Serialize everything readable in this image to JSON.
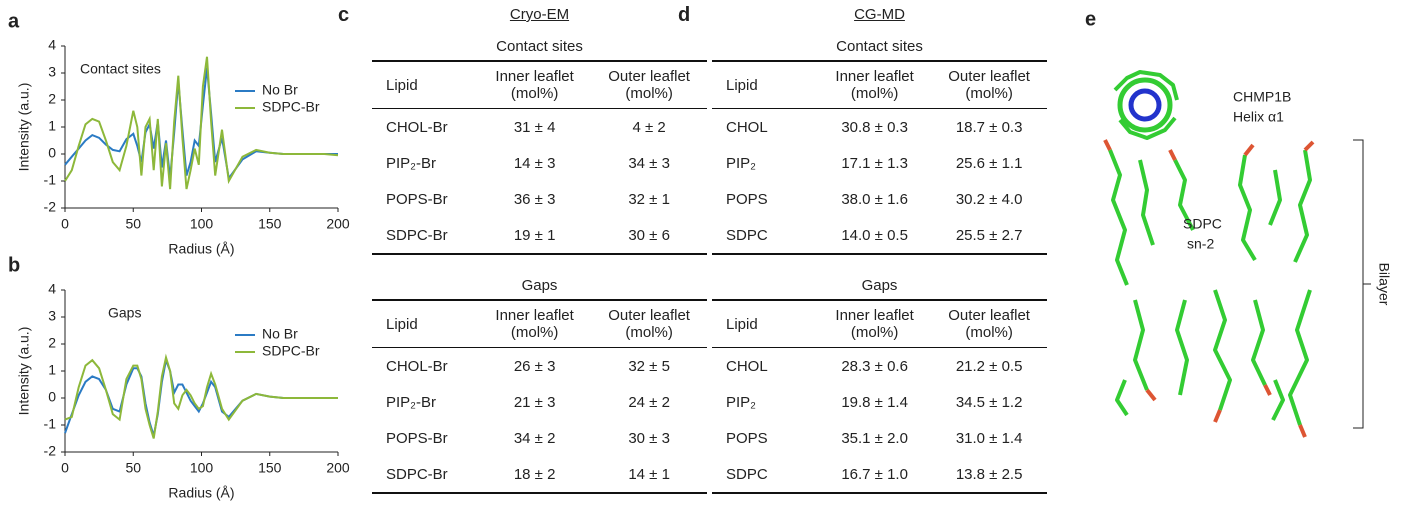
{
  "chart_data": [
    {
      "type": "line",
      "label": "a",
      "annotation": "Contact sites",
      "xlabel": "Radius (Å)",
      "ylabel": "Intensity (a.u.)",
      "x": [
        0,
        5,
        10,
        15,
        20,
        25,
        30,
        35,
        40,
        45,
        50,
        53,
        56,
        59,
        62,
        65,
        68,
        71,
        74,
        77,
        80,
        83,
        86,
        89,
        92,
        95,
        98,
        101,
        104,
        107,
        110,
        115,
        120,
        130,
        140,
        150,
        160,
        170,
        180,
        190,
        200
      ],
      "series": [
        {
          "name": "No Br",
          "color": "#2b7bc4",
          "values": [
            -0.4,
            -0.1,
            0.2,
            0.5,
            0.7,
            0.6,
            0.35,
            0.15,
            0.1,
            0.55,
            0.75,
            0.3,
            -0.3,
            0.8,
            1.1,
            0.2,
            1.2,
            -0.5,
            0.5,
            -0.9,
            0.8,
            2.7,
            0.9,
            -0.8,
            -0.3,
            0.5,
            0.3,
            1.8,
            3.2,
            1.5,
            -0.3,
            0.6,
            -0.9,
            -0.2,
            0.1,
            0.05,
            0,
            0,
            0,
            0,
            0
          ]
        },
        {
          "name": "SDPC-Br",
          "color": "#8db83a",
          "values": [
            -1.0,
            -0.6,
            0.3,
            1.1,
            1.3,
            1.2,
            0.5,
            -0.3,
            -0.6,
            0.3,
            1.6,
            1.0,
            -0.8,
            1.0,
            1.3,
            -0.6,
            1.3,
            -1.2,
            0.4,
            -1.3,
            1.2,
            2.9,
            0.6,
            -1.3,
            -0.6,
            0.2,
            -0.4,
            2.5,
            3.6,
            1.2,
            -0.8,
            0.9,
            -1.0,
            -0.1,
            0.15,
            0.05,
            0,
            0,
            0,
            0,
            -0.05
          ]
        }
      ],
      "xlim": [
        0,
        200
      ],
      "ylim": [
        -2,
        4
      ],
      "xticks": [
        0,
        50,
        100,
        150,
        200
      ],
      "yticks": [
        -2,
        -1,
        0,
        1,
        2,
        3,
        4
      ]
    },
    {
      "type": "line",
      "label": "b",
      "annotation": "Gaps",
      "xlabel": "Radius (Å)",
      "ylabel": "Intensity (a.u.)",
      "x": [
        0,
        5,
        10,
        15,
        20,
        25,
        30,
        35,
        40,
        45,
        50,
        53,
        56,
        59,
        62,
        65,
        68,
        71,
        74,
        77,
        80,
        83,
        86,
        89,
        92,
        95,
        98,
        101,
        104,
        107,
        110,
        115,
        120,
        130,
        140,
        150,
        160,
        170,
        180,
        190,
        200
      ],
      "series": [
        {
          "name": "No Br",
          "color": "#2b7bc4",
          "values": [
            -1.3,
            -0.6,
            0.1,
            0.6,
            0.8,
            0.7,
            0.3,
            -0.4,
            -0.5,
            0.5,
            1.1,
            1.1,
            0.8,
            -0.2,
            -0.9,
            -1.4,
            -0.6,
            0.6,
            1.4,
            1.0,
            0.2,
            0.5,
            0.5,
            0.2,
            -0.1,
            -0.3,
            -0.5,
            -0.2,
            0.2,
            0.6,
            0.4,
            -0.5,
            -0.7,
            -0.1,
            0.15,
            0.05,
            0,
            0,
            0,
            0,
            0
          ]
        },
        {
          "name": "SDPC-Br",
          "color": "#8db83a",
          "values": [
            -0.8,
            -0.7,
            0.4,
            1.2,
            1.4,
            1.1,
            0.3,
            -0.6,
            -0.8,
            0.7,
            1.2,
            1.2,
            0.7,
            -0.4,
            -1.0,
            -1.5,
            -0.5,
            0.8,
            1.5,
            1.0,
            -0.2,
            -0.4,
            0.1,
            0.3,
            0.1,
            -0.2,
            -0.4,
            -0.3,
            0.4,
            0.9,
            0.5,
            -0.4,
            -0.8,
            -0.1,
            0.15,
            0.05,
            0,
            0,
            0,
            0,
            0
          ]
        }
      ],
      "xlim": [
        0,
        200
      ],
      "ylim": [
        -2,
        4
      ],
      "xticks": [
        0,
        50,
        100,
        150,
        200
      ],
      "yticks": [
        -2,
        -1,
        0,
        1,
        2,
        3,
        4
      ]
    }
  ],
  "tables": [
    {
      "label": "c",
      "title": "Cryo-EM",
      "sections": [
        {
          "subtitle": "Contact sites",
          "header": [
            "Lipid",
            "Inner leaflet (mol%)",
            "Outer leaflet (mol%)"
          ],
          "rows": [
            [
              "CHOL-Br",
              "31 ± 4",
              "4 ± 2"
            ],
            [
              "PIP₂-Br",
              "14 ± 3",
              "34 ± 3"
            ],
            [
              "POPS-Br",
              "36 ± 3",
              "32 ± 1"
            ],
            [
              "SDPC-Br",
              "19 ± 1",
              "30 ± 6"
            ]
          ]
        },
        {
          "subtitle": "Gaps",
          "header": [
            "Lipid",
            "Inner leaflet (mol%)",
            "Outer leaflet (mol%)"
          ],
          "rows": [
            [
              "CHOL-Br",
              "26 ± 3",
              "32 ± 5"
            ],
            [
              "PIP₂-Br",
              "21 ± 3",
              "24 ± 2"
            ],
            [
              "POPS-Br",
              "34 ± 2",
              "30 ± 3"
            ],
            [
              "SDPC-Br",
              "18 ± 2",
              "14 ± 1"
            ]
          ]
        }
      ]
    },
    {
      "label": "d",
      "title": "CG-MD",
      "sections": [
        {
          "subtitle": "Contact sites",
          "header": [
            "Lipid",
            "Inner leaflet (mol%)",
            "Outer leaflet (mol%)"
          ],
          "rows": [
            [
              "CHOL",
              "30.8 ± 0.3",
              "18.7 ± 0.3"
            ],
            [
              "PIP₂",
              "17.1 ± 1.3",
              "25.6 ± 1.1"
            ],
            [
              "POPS",
              "38.0 ± 1.6",
              "30.2 ± 4.0"
            ],
            [
              "SDPC",
              "14.0 ± 0.5",
              "25.5 ± 2.7"
            ]
          ]
        },
        {
          "subtitle": "Gaps",
          "header": [
            "Lipid",
            "Inner leaflet (mol%)",
            "Outer leaflet (mol%)"
          ],
          "rows": [
            [
              "CHOL",
              "28.3 ± 0.6",
              "21.2 ± 0.5"
            ],
            [
              "PIP₂",
              "19.8 ± 1.4",
              "34.5 ± 1.2"
            ],
            [
              "POPS",
              "35.1 ± 2.0",
              "31.0 ± 1.4"
            ],
            [
              "SDPC",
              "16.7 ± 1.0",
              "13.8 ± 2.5"
            ]
          ]
        }
      ]
    }
  ],
  "structure": {
    "label": "e",
    "protein": [
      "CHMP1B",
      "Helix α1"
    ],
    "lipid": [
      "SDPC",
      "sn-2"
    ],
    "bilayer": "Bilayer"
  }
}
